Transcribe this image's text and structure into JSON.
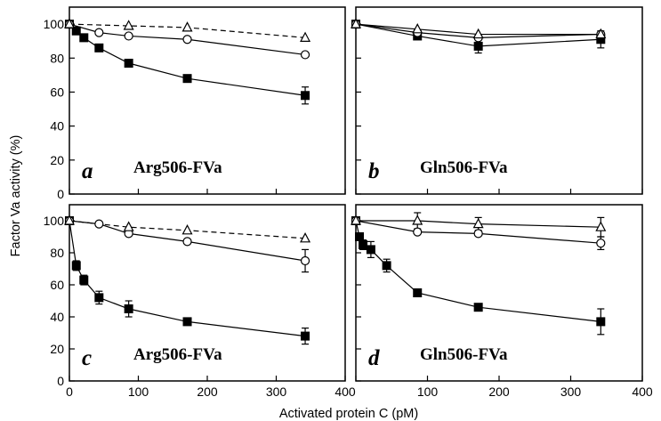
{
  "figure": {
    "ylabel": "Factor Va activity (%)",
    "xlabel": "Activated protein C (pM)"
  },
  "chart_data": [
    {
      "type": "line",
      "panel_label": "a",
      "title": "Arg506-FVa",
      "xlim": [
        0,
        400
      ],
      "ylim": [
        0,
        110
      ],
      "xticks": [
        0,
        100,
        200,
        300,
        400
      ],
      "yticks": [
        0,
        20,
        40,
        60,
        80,
        100
      ],
      "series": [
        {
          "marker": "filled-square",
          "line": "solid",
          "x": [
            0,
            10,
            21,
            43,
            86,
            171,
            342
          ],
          "y": [
            100,
            96,
            92,
            86,
            77,
            68,
            58
          ],
          "err": [
            0,
            0,
            0,
            0,
            0,
            0,
            5
          ]
        },
        {
          "marker": "open-circle",
          "line": "solid",
          "x": [
            0,
            43,
            86,
            171,
            342
          ],
          "y": [
            100,
            95,
            93,
            91,
            82
          ],
          "err": [
            0,
            0,
            0,
            0,
            0
          ]
        },
        {
          "marker": "open-triangle",
          "line": "dashed",
          "x": [
            0,
            86,
            171,
            342
          ],
          "y": [
            100,
            99,
            98,
            92
          ],
          "err": [
            0,
            0,
            0,
            0
          ]
        }
      ]
    },
    {
      "type": "line",
      "panel_label": "b",
      "title": "Gln506-FVa",
      "xlim": [
        0,
        400
      ],
      "ylim": [
        0,
        110
      ],
      "xticks": [
        0,
        100,
        200,
        300,
        400
      ],
      "yticks": [
        0,
        20,
        40,
        60,
        80,
        100
      ],
      "series": [
        {
          "marker": "filled-square",
          "line": "solid",
          "x": [
            0,
            86,
            171,
            342
          ],
          "y": [
            100,
            93,
            87,
            91
          ],
          "err": [
            0,
            0,
            4,
            5
          ]
        },
        {
          "marker": "open-circle",
          "line": "solid",
          "x": [
            0,
            86,
            171,
            342
          ],
          "y": [
            100,
            95,
            92,
            94
          ],
          "err": [
            0,
            0,
            0,
            0
          ]
        },
        {
          "marker": "open-triangle",
          "line": "solid",
          "x": [
            0,
            86,
            171,
            342
          ],
          "y": [
            100,
            97,
            94,
            94
          ],
          "err": [
            0,
            0,
            0,
            0
          ]
        }
      ]
    },
    {
      "type": "line",
      "panel_label": "c",
      "title": "Arg506-FVa",
      "xlim": [
        0,
        400
      ],
      "ylim": [
        0,
        110
      ],
      "xticks": [
        0,
        100,
        200,
        300,
        400
      ],
      "yticks": [
        0,
        20,
        40,
        60,
        80,
        100
      ],
      "series": [
        {
          "marker": "filled-square",
          "line": "solid",
          "x": [
            0,
            10,
            21,
            43,
            86,
            171,
            342
          ],
          "y": [
            100,
            72,
            63,
            52,
            45,
            37,
            28
          ],
          "err": [
            0,
            3,
            3,
            4,
            5,
            0,
            5
          ]
        },
        {
          "marker": "open-circle",
          "line": "solid",
          "x": [
            0,
            43,
            86,
            171,
            342
          ],
          "y": [
            100,
            98,
            92,
            87,
            75
          ],
          "err": [
            0,
            0,
            0,
            0,
            7
          ]
        },
        {
          "marker": "open-triangle",
          "line": "dashed",
          "x": [
            0,
            86,
            171,
            342
          ],
          "y": [
            100,
            96,
            94,
            89
          ],
          "err": [
            0,
            0,
            0,
            0
          ]
        }
      ]
    },
    {
      "type": "line",
      "panel_label": "d",
      "title": "Gln506-FVa",
      "xlim": [
        0,
        400
      ],
      "ylim": [
        0,
        110
      ],
      "xticks": [
        0,
        100,
        200,
        300,
        400
      ],
      "yticks": [
        0,
        20,
        40,
        60,
        80,
        100
      ],
      "series": [
        {
          "marker": "filled-square",
          "line": "solid",
          "x": [
            0,
            5,
            10,
            21,
            43,
            86,
            171,
            342
          ],
          "y": [
            100,
            90,
            85,
            82,
            72,
            55,
            46,
            37
          ],
          "err": [
            0,
            0,
            3,
            5,
            4,
            0,
            0,
            8
          ]
        },
        {
          "marker": "open-circle",
          "line": "solid",
          "x": [
            0,
            86,
            171,
            342
          ],
          "y": [
            100,
            93,
            92,
            86
          ],
          "err": [
            0,
            0,
            0,
            4
          ]
        },
        {
          "marker": "open-triangle",
          "line": "solid",
          "x": [
            0,
            86,
            171,
            342
          ],
          "y": [
            100,
            100,
            98,
            96
          ],
          "err": [
            0,
            5,
            4,
            6
          ]
        }
      ]
    }
  ]
}
